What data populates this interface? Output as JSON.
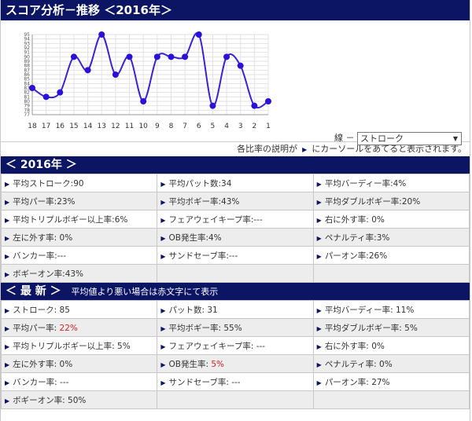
{
  "title": "スコア分析－推移 ＜2016年＞",
  "chart_data": {
    "type": "line",
    "categories": [
      "18",
      "17",
      "16",
      "15",
      "14",
      "13",
      "12",
      "11",
      "10",
      "9",
      "8",
      "7",
      "6",
      "5",
      "4",
      "3",
      "2",
      "1"
    ],
    "values": [
      83,
      81,
      82,
      90,
      87,
      95,
      86,
      90,
      80,
      90,
      90,
      90,
      95,
      79,
      90,
      88,
      79,
      80
    ],
    "yticks": [
      "95",
      "94",
      "93",
      "92",
      "91",
      "90",
      "89",
      "88",
      "87",
      "86",
      "85",
      "84",
      "83",
      "82",
      "81",
      "80",
      "79",
      "78",
      "77"
    ],
    "ylim": [
      77,
      95
    ],
    "grid": true,
    "line_color": "#3a22d6",
    "marker_color": "#2a10d8"
  },
  "line_select": {
    "label": "線 －",
    "value": "ストローク"
  },
  "note": {
    "before": "各比率の説明が",
    "after": "にカーソールをあてると表示されます。"
  },
  "section_2016": {
    "title": "＜ 2016年 ＞",
    "rows": [
      [
        {
          "text": "平均ストローク:90",
          "red": ""
        },
        {
          "text": "平均パット数:34",
          "red": ""
        },
        {
          "text": "平均バーディー率:4%",
          "red": ""
        }
      ],
      [
        {
          "text": "平均パー率:23%",
          "red": ""
        },
        {
          "text": "平均ボギー率:43%",
          "red": ""
        },
        {
          "text": "平均ダブルボギー率:20%",
          "red": ""
        }
      ],
      [
        {
          "text": "平均トリプルボギー以上率:6%",
          "red": ""
        },
        {
          "text": "フェアウェイキープ率:---",
          "red": ""
        },
        {
          "text": "右に外す率: 0%",
          "red": ""
        }
      ],
      [
        {
          "text": "左に外す率: 0%",
          "red": ""
        },
        {
          "text": "OB発生率:4%",
          "red": ""
        },
        {
          "text": "ペナルティ率:3%",
          "red": ""
        }
      ],
      [
        {
          "text": "バンカー率:---",
          "red": ""
        },
        {
          "text": "サンドセーブ率:---",
          "red": ""
        },
        {
          "text": "パーオン率:26%",
          "red": ""
        }
      ],
      [
        {
          "text": "ボギーオン率:43%",
          "red": ""
        },
        null,
        null
      ]
    ]
  },
  "section_latest": {
    "title": "＜ 最 新 ＞",
    "subtitle": "平均値より悪い場合は赤文字にて表示",
    "rows": [
      [
        {
          "text": "ストローク: 85",
          "red": ""
        },
        {
          "text": "パット数: 31",
          "red": ""
        },
        {
          "text": "平均バーディー率: 11%",
          "red": ""
        }
      ],
      [
        {
          "text": "平均パー率: ",
          "red": "22%"
        },
        {
          "text": "平均ボギー率: 55%",
          "red": ""
        },
        {
          "text": "平均ダブルボギー率: 5%",
          "red": ""
        }
      ],
      [
        {
          "text": "平均トリプルボギー以上率: 5%",
          "red": ""
        },
        {
          "text": "フェアウェイキープ率: ---",
          "red": ""
        },
        {
          "text": "右に外す率: 0%",
          "red": ""
        }
      ],
      [
        {
          "text": "左に外す率: 0%",
          "red": ""
        },
        {
          "text": "OB発生率: ",
          "red": "5%"
        },
        {
          "text": "ペナルティ率: 0%",
          "red": ""
        }
      ],
      [
        {
          "text": "バンカー率: ---",
          "red": ""
        },
        {
          "text": "サンドセーブ率: ---",
          "red": ""
        },
        {
          "text": "パーオン率: 27%",
          "red": ""
        }
      ],
      [
        {
          "text": "ボギーオン率: 50%",
          "red": ""
        },
        null,
        null
      ]
    ]
  }
}
